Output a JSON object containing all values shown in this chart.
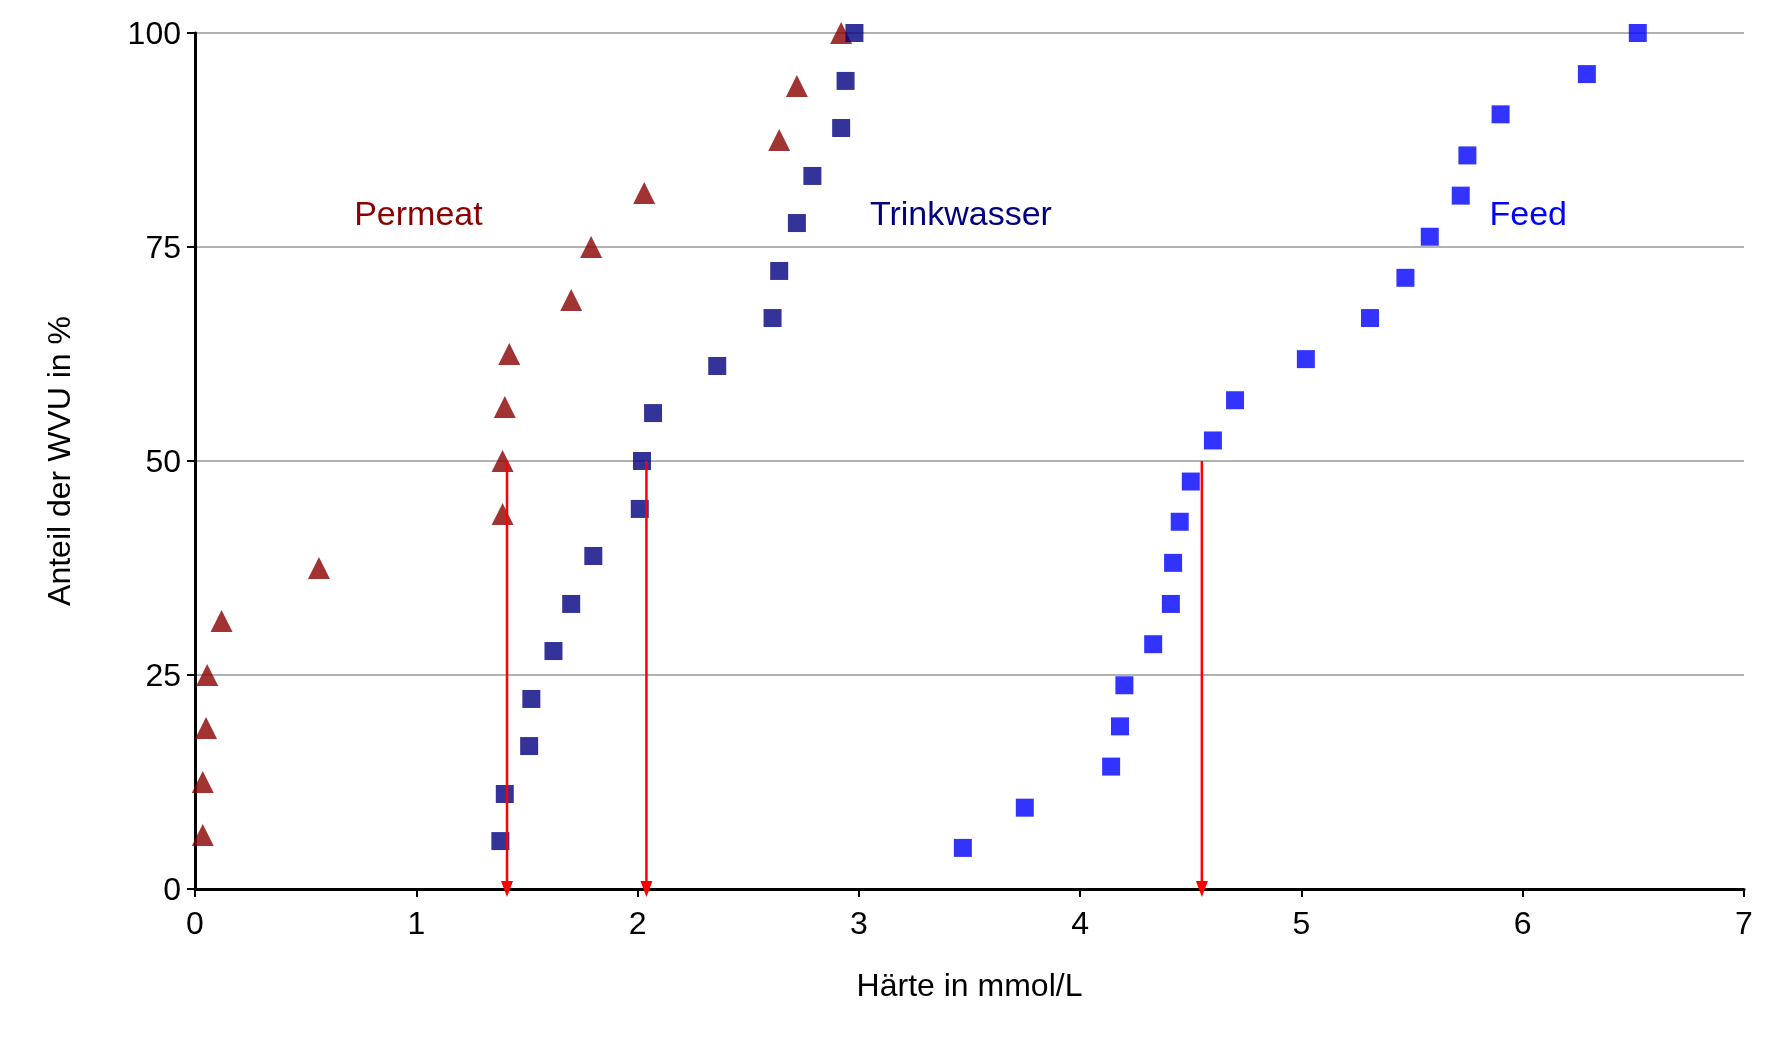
{
  "chart_data": {
    "type": "scatter",
    "xlabel": "Härte in mmol/L",
    "ylabel": "Anteil der WVU in %",
    "xlim": [
      0,
      7
    ],
    "xticks": [
      0,
      1,
      2,
      3,
      4,
      5,
      6,
      7
    ],
    "ylim": [
      0,
      100
    ],
    "yticks": [
      0,
      25,
      50,
      75,
      100
    ],
    "grid": "y",
    "legend": false,
    "series": [
      {
        "name": "Permeat",
        "color": "#8b0000",
        "marker": "triangle",
        "x": [
          0.035,
          0.035,
          0.05,
          0.055,
          0.12,
          0.56,
          1.39,
          1.39,
          1.4,
          1.42,
          1.7,
          1.79,
          2.03,
          2.64,
          2.72,
          2.92
        ],
        "values": [
          6.3,
          12.5,
          18.8,
          25,
          31.3,
          37.5,
          43.8,
          50,
          56.3,
          62.5,
          68.8,
          75,
          81.3,
          87.5,
          93.8,
          100
        ]
      },
      {
        "name": "Trinkwasser",
        "color": "#000080",
        "marker": "square",
        "x": [
          1.38,
          1.4,
          1.51,
          1.52,
          1.62,
          1.7,
          1.8,
          2.01,
          2.02,
          2.07,
          2.36,
          2.61,
          2.64,
          2.72,
          2.79,
          2.92,
          2.94,
          2.98
        ],
        "values": [
          5.6,
          11.1,
          16.7,
          22.2,
          27.8,
          33.3,
          38.9,
          44.4,
          50,
          55.6,
          61.1,
          66.7,
          72.2,
          77.8,
          83.3,
          88.9,
          94.4,
          100
        ]
      },
      {
        "name": "Feed",
        "color": "#0000ff",
        "marker": "square",
        "x": [
          3.47,
          3.75,
          4.14,
          4.18,
          4.2,
          4.33,
          4.41,
          4.42,
          4.45,
          4.5,
          4.6,
          4.7,
          5.02,
          5.31,
          5.47,
          5.58,
          5.72,
          5.75,
          5.9,
          6.29,
          6.52
        ],
        "values": [
          4.8,
          9.5,
          14.3,
          19,
          23.8,
          28.6,
          33.3,
          38.1,
          42.9,
          47.6,
          52.4,
          57.1,
          61.9,
          66.7,
          71.4,
          76.2,
          81,
          85.7,
          90.5,
          95.2,
          100
        ]
      },
      {
        "type": "line",
        "color": "#ff0000",
        "marker": "triangle",
        "x": [
          1.41,
          1.41
        ],
        "values": [
          50,
          0
        ]
      },
      {
        "type": "line",
        "color": "#ff0000",
        "marker": "triangle",
        "x": [
          2.04,
          2.04
        ],
        "values": [
          50,
          0
        ]
      },
      {
        "type": "line",
        "color": "#ff0000",
        "marker": "triangle",
        "x": [
          4.55,
          4.55
        ],
        "values": [
          50,
          0
        ]
      }
    ]
  }
}
